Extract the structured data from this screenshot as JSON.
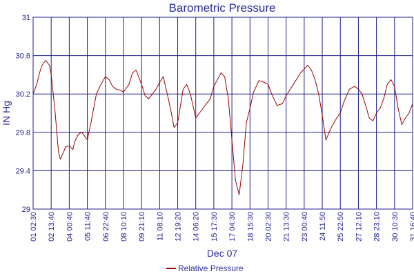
{
  "chart_data": {
    "type": "line",
    "title": "Barometric Pressure",
    "xlabel": "Dec 07",
    "ylabel": "IN Hg",
    "ylim": [
      29,
      31
    ],
    "yticks": [
      29,
      29.4,
      29.8,
      30.2,
      30.6,
      31
    ],
    "ytick_labels": [
      "29",
      "29.4",
      "29.8",
      "30.2",
      "30.6",
      "31"
    ],
    "xticks": [
      "01 02:30",
      "02 13:40",
      "04 00:40",
      "05 11:40",
      "06 22:40",
      "08 10:10",
      "09 21:10",
      "11 08:10",
      "12 19:20",
      "14 06:20",
      "15 17:30",
      "17 04:30",
      "18 15:30",
      "20 02:30",
      "21 13:30",
      "23 00:40",
      "24 11:50",
      "25 22:50",
      "27 12:10",
      "28 23:10",
      "30 10:30",
      "31 16:40"
    ],
    "grid": true,
    "legend_position": "bottom-center",
    "series": [
      {
        "name": "Relative Pressure",
        "color": "#990000",
        "x": [
          0,
          0.2,
          0.4,
          0.5,
          0.7,
          0.9,
          1.0,
          1.2,
          1.4,
          1.5,
          1.7,
          1.8,
          2.0,
          2.2,
          2.3,
          2.5,
          2.7,
          3.0,
          3.2,
          3.5,
          3.7,
          3.9,
          4.0,
          4.2,
          4.4,
          4.6,
          4.8,
          5.0,
          5.3,
          5.5,
          5.7,
          6.0,
          6.2,
          6.4,
          6.6,
          6.8,
          7.0,
          7.2,
          7.4,
          7.6,
          7.8,
          8.0,
          8.3,
          8.5,
          8.7,
          9.0,
          9.2,
          9.4,
          9.6,
          9.8,
          10.0,
          10.2,
          10.4,
          10.6,
          10.8,
          11.0,
          11.2,
          11.4,
          11.6,
          11.8,
          12.0,
          12.2,
          12.5,
          12.8,
          13.0,
          13.2,
          13.5,
          13.8,
          14.0,
          14.2,
          14.4,
          14.6,
          14.8,
          15.0,
          15.2,
          15.4,
          15.6,
          15.8,
          16.0,
          16.2,
          16.5,
          16.8,
          17.0,
          17.2,
          17.5,
          17.8,
          18.0,
          18.2,
          18.4,
          18.6,
          18.8,
          19.0,
          19.2,
          19.4,
          19.6,
          19.8,
          20.0,
          20.2,
          20.4,
          20.6,
          20.8,
          21.0
        ],
        "y": [
          30.2,
          30.3,
          30.45,
          30.5,
          30.55,
          30.5,
          30.4,
          30.05,
          29.6,
          29.52,
          29.6,
          29.65,
          29.66,
          29.62,
          29.7,
          29.78,
          29.8,
          29.72,
          29.9,
          30.2,
          30.28,
          30.35,
          30.38,
          30.35,
          30.28,
          30.25,
          30.24,
          30.22,
          30.3,
          30.42,
          30.45,
          30.3,
          30.18,
          30.15,
          30.2,
          30.25,
          30.32,
          30.38,
          30.22,
          30.05,
          29.85,
          29.9,
          30.25,
          30.3,
          30.2,
          29.95,
          30.0,
          30.05,
          30.1,
          30.15,
          30.28,
          30.35,
          30.42,
          30.38,
          30.15,
          29.72,
          29.3,
          29.15,
          29.45,
          29.9,
          30.05,
          30.22,
          30.34,
          30.32,
          30.3,
          30.2,
          30.08,
          30.1,
          30.18,
          30.24,
          30.3,
          30.36,
          30.42,
          30.46,
          30.5,
          30.45,
          30.35,
          30.2,
          29.98,
          29.72,
          29.85,
          29.95,
          30.0,
          30.12,
          30.25,
          30.28,
          30.25,
          30.2,
          30.08,
          29.95,
          29.92,
          30.0,
          30.05,
          30.15,
          30.3,
          30.35,
          30.28,
          30.05,
          29.88,
          29.95,
          30.0,
          30.1
        ]
      }
    ]
  }
}
